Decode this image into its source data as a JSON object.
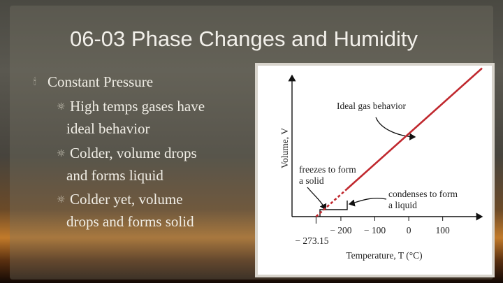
{
  "title": "06-03 Phase Changes and Humidity",
  "bullets": [
    {
      "text": "Constant Pressure",
      "items": [
        [
          "High temps gases have",
          "ideal behavior"
        ],
        [
          "Colder, volume drops",
          "and forms liquid"
        ],
        [
          "Colder yet, volume",
          "drops and forms solid"
        ]
      ]
    }
  ],
  "chart_data": {
    "type": "line",
    "x_label": "Temperature,  T (°C)",
    "y_label": "Volume, V",
    "annotations": [
      [
        "Ideal gas behavior"
      ],
      [
        "freezes to form",
        "a solid"
      ],
      [
        "condenses to form",
        "a liquid"
      ]
    ],
    "color": "#c0282e",
    "xlim": [
      -344,
      216
    ],
    "xticks": [
      {
        "value": -200,
        "label": "− 200"
      },
      {
        "value": -100,
        "label": "− 100"
      },
      0,
      100
    ],
    "zero_point": {
      "value": -273.15,
      "label": "− 273.15"
    }
  }
}
